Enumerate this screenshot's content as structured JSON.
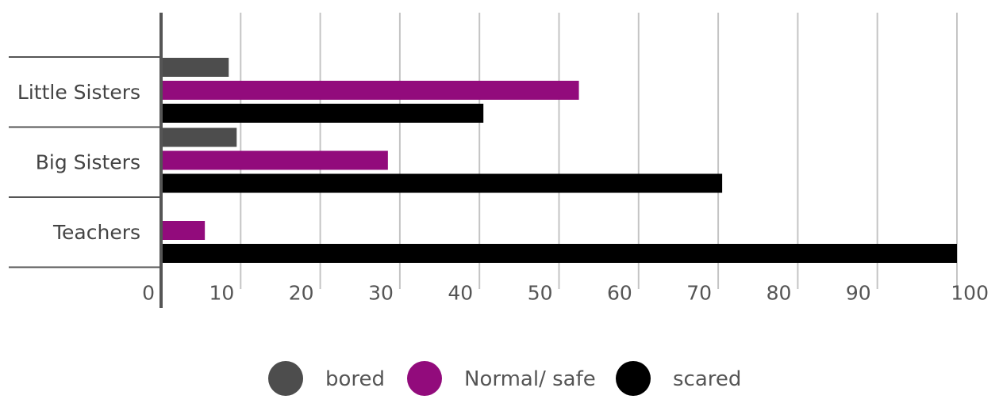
{
  "chart_data": {
    "type": "bar",
    "orientation": "horizontal",
    "title": "",
    "xlabel": "",
    "ylabel": "",
    "categories": [
      "Little Sisters",
      "Big Sisters",
      "Teachers"
    ],
    "series": [
      {
        "name": "bored",
        "color": "#4d4d4d",
        "values": [
          8.5,
          9.5,
          0
        ]
      },
      {
        "name": "Normal/ safe",
        "color": "#920b7c",
        "values": [
          52.5,
          28.5,
          5.5
        ]
      },
      {
        "name": "scared",
        "color": "#000000",
        "values": [
          40.5,
          70.5,
          100
        ]
      }
    ],
    "xlim": [
      0,
      100
    ],
    "xticks": [
      "0",
      "10",
      "20",
      "30",
      "40",
      "50",
      "60",
      "70",
      "80",
      "90",
      "100"
    ],
    "grid": "vertical",
    "legend": "bottom"
  }
}
